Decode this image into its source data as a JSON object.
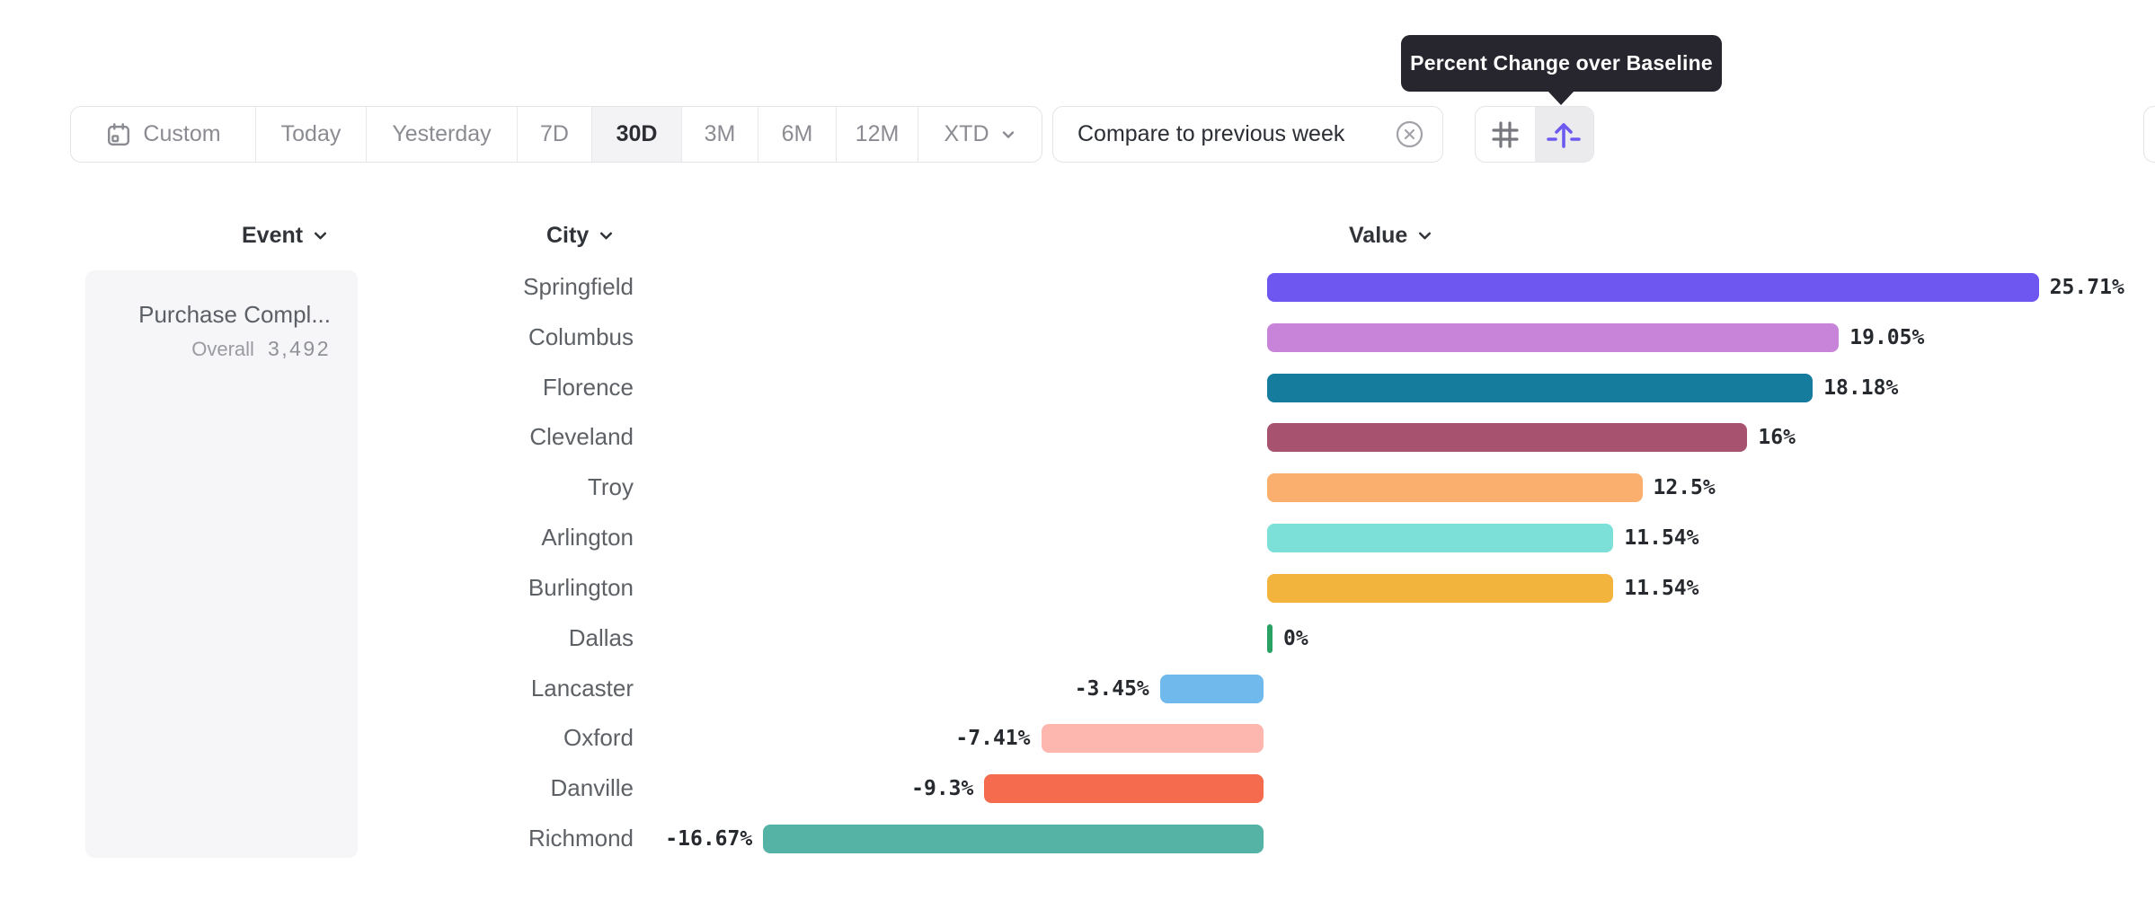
{
  "tooltip": {
    "text": "Percent Change over Baseline"
  },
  "toolbar": {
    "date_ranges": [
      "Custom",
      "Today",
      "Yesterday",
      "7D",
      "30D",
      "3M",
      "6M",
      "12M",
      "XTD"
    ],
    "selected_range": "30D",
    "compare_chip_label": "Compare to previous week",
    "view_modes": [
      "grid",
      "percent-lift"
    ],
    "selected_view": "percent-lift"
  },
  "columns": {
    "event": "Event",
    "city": "City",
    "value": "Value"
  },
  "event_panel": {
    "title": "Purchase Compl...",
    "overall_label": "Overall",
    "overall_value": "3,492"
  },
  "colors": {
    "accent_purple": "#6c5af0",
    "tooltip_bg": "#27262e",
    "selected_segment_bg": "#f3f3f5",
    "border": "#e4e4e8"
  },
  "chart_data": {
    "type": "bar",
    "orientation": "horizontal",
    "title": "Percent Change over Baseline",
    "xlabel": "Percent change",
    "ylabel": "City",
    "baseline": 0,
    "xlim": [
      -17,
      26
    ],
    "value_suffix": "%",
    "categories": [
      "Springfield",
      "Columbus",
      "Florence",
      "Cleveland",
      "Troy",
      "Arlington",
      "Burlington",
      "Dallas",
      "Lancaster",
      "Oxford",
      "Danville",
      "Richmond"
    ],
    "values": [
      25.71,
      19.05,
      18.18,
      16,
      12.5,
      11.54,
      11.54,
      0,
      -3.45,
      -7.41,
      -9.3,
      -16.67
    ],
    "labels": [
      "25.71%",
      "19.05%",
      "18.18%",
      "16%",
      "12.5%",
      "11.54%",
      "11.54%",
      "0%",
      "-3.45%",
      "-7.41%",
      "-9.3%",
      "-16.67%"
    ],
    "bar_colors": [
      "#6e57f1",
      "#c884d8",
      "#157c9e",
      "#a75370",
      "#fbaf6e",
      "#7ce0d9",
      "#f3b43e",
      "#2aa263",
      "#70b9ec",
      "#fdb7af",
      "#f56b4d",
      "#55b3a6"
    ]
  }
}
